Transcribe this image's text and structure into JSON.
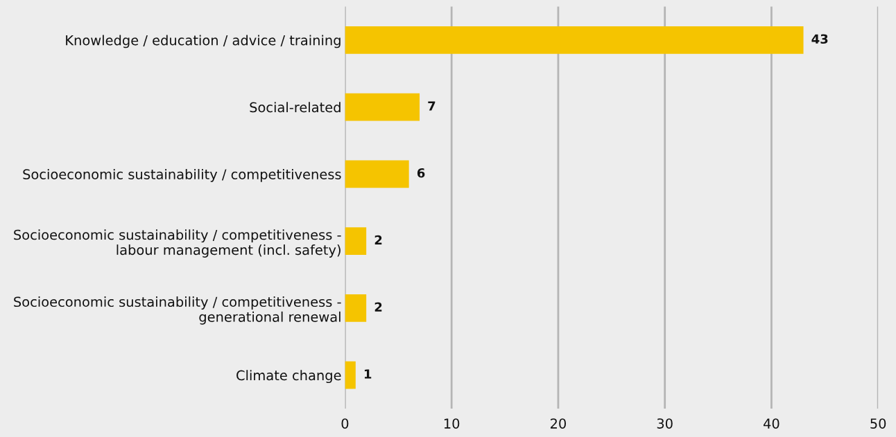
{
  "chart_data": {
    "type": "bar",
    "orientation": "horizontal",
    "categories": [
      "Knowledge / education / advice / training",
      "Social-related",
      "Socioeconomic sustainability / competitiveness",
      "Socioeconomic sustainability / competitiveness -\nlabour management (incl. safety)",
      "Socioeconomic sustainability / competitiveness -\ngenerational renewal",
      "Climate change"
    ],
    "values": [
      43,
      7,
      6,
      2,
      2,
      1
    ],
    "color": "#f5c400",
    "xlim": [
      0,
      50
    ],
    "xticks": [
      0,
      10,
      20,
      30,
      40,
      50
    ],
    "grid": "x",
    "data_labels": true
  }
}
